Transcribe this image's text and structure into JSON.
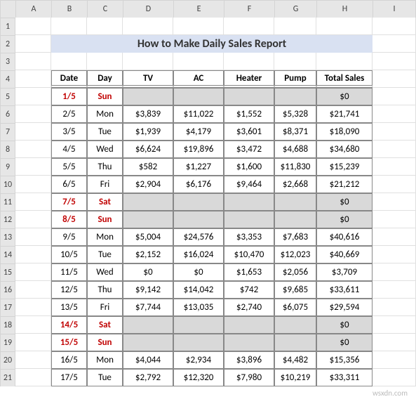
{
  "columns": [
    "",
    "A",
    "B",
    "C",
    "D",
    "E",
    "F",
    "G",
    "H",
    "I"
  ],
  "rowNumbers": [
    "1",
    "2",
    "3",
    "4",
    "5",
    "6",
    "7",
    "8",
    "9",
    "10",
    "11",
    "12",
    "13",
    "14",
    "15",
    "16",
    "17",
    "18",
    "19",
    "20",
    "21"
  ],
  "title": "How to Make Daily Sales Report",
  "headers": {
    "date": "Date",
    "day": "Day",
    "tv": "TV",
    "ac": "AC",
    "heater": "Heater",
    "pump": "Pump",
    "total": "Total Sales"
  },
  "rows": [
    {
      "d": "1/5",
      "dy": "Sun",
      "tv": "",
      "ac": "",
      "ht": "",
      "pm": "",
      "t": "$0",
      "wk": true
    },
    {
      "d": "2/5",
      "dy": "Mon",
      "tv": "$3,839",
      "ac": "$11,022",
      "ht": "$1,552",
      "pm": "$5,328",
      "t": "$21,741",
      "wk": false
    },
    {
      "d": "3/5",
      "dy": "Tue",
      "tv": "$1,939",
      "ac": "$4,179",
      "ht": "$3,601",
      "pm": "$8,371",
      "t": "$18,090",
      "wk": false
    },
    {
      "d": "4/5",
      "dy": "Wed",
      "tv": "$6,624",
      "ac": "$19,896",
      "ht": "$3,472",
      "pm": "$4,688",
      "t": "$34,680",
      "wk": false
    },
    {
      "d": "5/5",
      "dy": "Thu",
      "tv": "$582",
      "ac": "$1,227",
      "ht": "$1,600",
      "pm": "$11,830",
      "t": "$15,239",
      "wk": false
    },
    {
      "d": "6/5",
      "dy": "Fri",
      "tv": "$2,904",
      "ac": "$6,176",
      "ht": "$9,464",
      "pm": "$2,668",
      "t": "$21,212",
      "wk": false
    },
    {
      "d": "7/5",
      "dy": "Sat",
      "tv": "",
      "ac": "",
      "ht": "",
      "pm": "",
      "t": "$0",
      "wk": true
    },
    {
      "d": "8/5",
      "dy": "Sun",
      "tv": "",
      "ac": "",
      "ht": "",
      "pm": "",
      "t": "$0",
      "wk": true
    },
    {
      "d": "9/5",
      "dy": "Mon",
      "tv": "$5,004",
      "ac": "$24,576",
      "ht": "$3,353",
      "pm": "$7,683",
      "t": "$40,616",
      "wk": false
    },
    {
      "d": "10/5",
      "dy": "Tue",
      "tv": "$2,152",
      "ac": "$16,024",
      "ht": "$10,470",
      "pm": "$12,023",
      "t": "$40,669",
      "wk": false
    },
    {
      "d": "11/5",
      "dy": "Wed",
      "tv": "$0",
      "ac": "$0",
      "ht": "$1,653",
      "pm": "$2,056",
      "t": "$3,709",
      "wk": false
    },
    {
      "d": "12/5",
      "dy": "Thu",
      "tv": "$9,142",
      "ac": "$14,042",
      "ht": "$742",
      "pm": "$9,685",
      "t": "$33,611",
      "wk": false
    },
    {
      "d": "13/5",
      "dy": "Fri",
      "tv": "$7,744",
      "ac": "$13,035",
      "ht": "$2,740",
      "pm": "$6,075",
      "t": "$29,594",
      "wk": false
    },
    {
      "d": "14/5",
      "dy": "Sat",
      "tv": "",
      "ac": "",
      "ht": "",
      "pm": "",
      "t": "$0",
      "wk": true
    },
    {
      "d": "15/5",
      "dy": "Sun",
      "tv": "",
      "ac": "",
      "ht": "",
      "pm": "",
      "t": "$0",
      "wk": true
    },
    {
      "d": "16/5",
      "dy": "Mon",
      "tv": "$4,044",
      "ac": "$2,934",
      "ht": "$3,896",
      "pm": "$4,482",
      "t": "$15,356",
      "wk": false
    },
    {
      "d": "17/5",
      "dy": "Tue",
      "tv": "$2,792",
      "ac": "$12,320",
      "ht": "$7,980",
      "pm": "$10,219",
      "t": "$33,311",
      "wk": false
    }
  ],
  "watermark": "wsxdn.com",
  "colors": {
    "titleBg": "#d9e1f2",
    "weekend": "#d9d9d9",
    "red": "#c00000",
    "border": "#888888"
  }
}
